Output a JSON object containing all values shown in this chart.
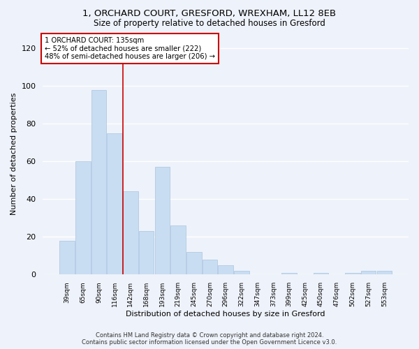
{
  "title1": "1, ORCHARD COURT, GRESFORD, WREXHAM, LL12 8EB",
  "title2": "Size of property relative to detached houses in Gresford",
  "xlabel": "Distribution of detached houses by size in Gresford",
  "ylabel": "Number of detached properties",
  "footer1": "Contains HM Land Registry data © Crown copyright and database right 2024.",
  "footer2": "Contains public sector information licensed under the Open Government Licence v3.0.",
  "annotation_line1": "1 ORCHARD COURT: 135sqm",
  "annotation_line2": "← 52% of detached houses are smaller (222)",
  "annotation_line3": "48% of semi-detached houses are larger (206) →",
  "categories": [
    "39sqm",
    "65sqm",
    "90sqm",
    "116sqm",
    "142sqm",
    "168sqm",
    "193sqm",
    "219sqm",
    "245sqm",
    "270sqm",
    "296sqm",
    "322sqm",
    "347sqm",
    "373sqm",
    "399sqm",
    "425sqm",
    "450sqm",
    "476sqm",
    "502sqm",
    "527sqm",
    "553sqm"
  ],
  "values": [
    18,
    60,
    98,
    75,
    44,
    23,
    57,
    26,
    12,
    8,
    5,
    2,
    0,
    0,
    1,
    0,
    1,
    0,
    1,
    2,
    2
  ],
  "bar_color": "#c9ddf2",
  "bar_edge_color": "#a8c4e0",
  "vline_color": "#cc0000",
  "vline_x_index": 3.5,
  "annotation_box_edge": "#cc0000",
  "bg_color": "#eef2fa",
  "grid_color": "#ffffff",
  "ylim": [
    0,
    128
  ],
  "yticks": [
    0,
    20,
    40,
    60,
    80,
    100,
    120
  ]
}
